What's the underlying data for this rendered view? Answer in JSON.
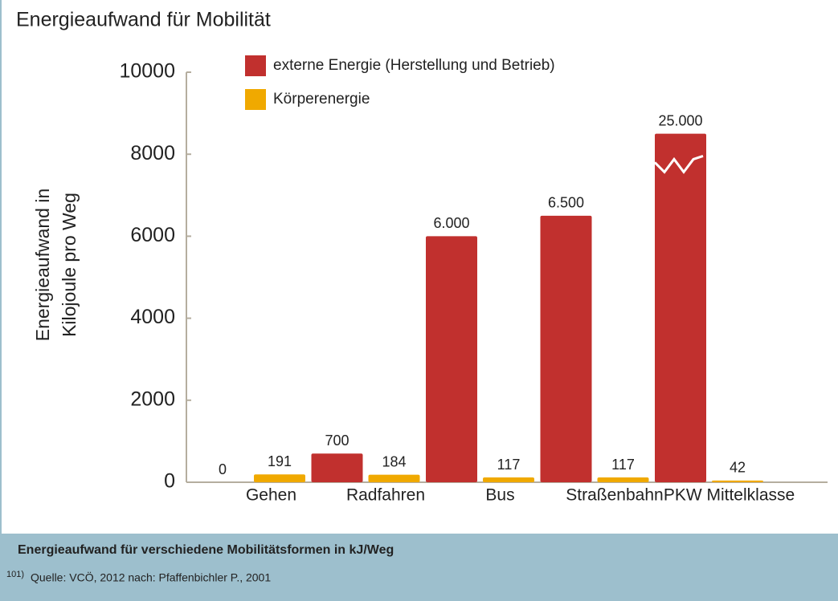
{
  "chart_data": {
    "type": "bar",
    "title": "Energieaufwand für Mobilität",
    "y_label": [
      "Energieaufwand in",
      "Kilojoule pro Weg"
    ],
    "categories": [
      "Gehen",
      "Radfahren",
      "Bus",
      "Straßenbahn",
      "PKW Mittelklasse"
    ],
    "series": [
      {
        "name": "externe Energie (Herstellung und Betrieb)",
        "color": "#c1302e",
        "values": [
          0,
          700,
          6000,
          6500,
          25000
        ],
        "value_labels": [
          "0",
          "700",
          "6.000",
          "6.500",
          "25.000"
        ]
      },
      {
        "name": "Körperenergie",
        "color": "#f0a900",
        "values": [
          191,
          184,
          117,
          117,
          42
        ]
      }
    ],
    "ylim": [
      0,
      10000
    ],
    "yticks": [
      0,
      2000,
      4000,
      6000,
      8000,
      10000
    ],
    "caption": "Energieaufwand für verschiedene Mobilitätsformen in kJ/Weg",
    "footnote": "101)",
    "source": "Quelle: VCÖ, 2012 nach: Pfaffenbichler P., 2001"
  }
}
